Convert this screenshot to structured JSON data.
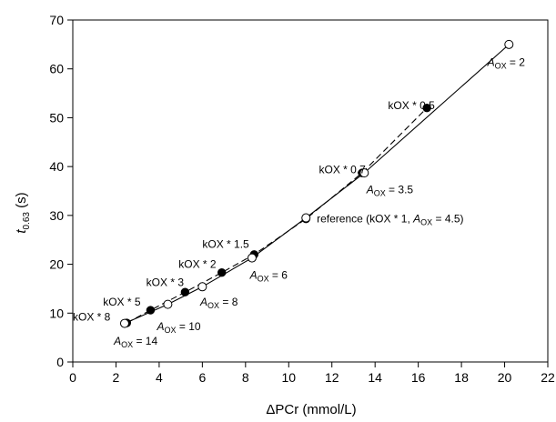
{
  "chart_data": {
    "type": "scatter",
    "xlabel": "ΔPCr (mmol/L)",
    "ylabel": {
      "main": "t",
      "sub": "0.63",
      "unit": " (s)"
    },
    "xlim": [
      0,
      22
    ],
    "ylim": [
      0,
      70
    ],
    "xticks": [
      0,
      2,
      4,
      6,
      8,
      10,
      12,
      14,
      16,
      18,
      20,
      22
    ],
    "yticks": [
      0,
      10,
      20,
      30,
      40,
      50,
      60,
      70
    ],
    "grid": false,
    "series": [
      {
        "marker": "filled-circle",
        "line": "dashed",
        "points": [
          {
            "x": 2.5,
            "y": 8.0,
            "label": "kOX * 8"
          },
          {
            "x": 3.6,
            "y": 10.6,
            "label": "kOX * 5"
          },
          {
            "x": 5.2,
            "y": 14.3,
            "label": "kOX * 3"
          },
          {
            "x": 6.9,
            "y": 18.3,
            "label": "kOX * 2"
          },
          {
            "x": 8.4,
            "y": 22.0,
            "label": "kOX * 1.5"
          },
          {
            "x": 10.8,
            "y": 29.3,
            "label": "reference (kOX * 1, A_OX = 4.5)"
          },
          {
            "x": 13.4,
            "y": 38.7,
            "label": "kOX * 0.7"
          },
          {
            "x": 16.4,
            "y": 52.0,
            "label": "kOX * 0.5"
          }
        ]
      },
      {
        "marker": "open-circle",
        "line": "solid",
        "points": [
          {
            "x": 2.4,
            "y": 7.9,
            "label": "A_OX = 14"
          },
          {
            "x": 4.4,
            "y": 11.8,
            "label": "A_OX = 10"
          },
          {
            "x": 6.0,
            "y": 15.4,
            "label": "A_OX = 8"
          },
          {
            "x": 8.3,
            "y": 21.3,
            "label": "A_OX = 6"
          },
          {
            "x": 10.8,
            "y": 29.5,
            "label": ""
          },
          {
            "x": 13.5,
            "y": 38.7,
            "label": "A_OX = 3.5"
          },
          {
            "x": 20.2,
            "y": 65.0,
            "label": "A_OX = 2"
          }
        ]
      }
    ],
    "annotations": [
      {
        "text": "kOX * 8",
        "x": 0.0,
        "y": 8.5
      },
      {
        "text": "kOX * 5",
        "x": 1.4,
        "y": 11.5
      },
      {
        "text": "kOX * 3",
        "x": 3.4,
        "y": 15.5
      },
      {
        "text": "kOX * 2",
        "x": 4.9,
        "y": 19.3
      },
      {
        "text": "kOX * 1.5",
        "x": 6.0,
        "y": 23.4
      },
      {
        "text": "kOX * 0.7",
        "x": 11.4,
        "y": 38.6
      },
      {
        "text": "kOX * 0.5",
        "x": 14.6,
        "y": 51.8
      },
      {
        "text": "reference (kOX * 1, ",
        "x": 11.3,
        "y": 28.6,
        "sub_italic": "A",
        "sub": "OX",
        "after": " = 4.5)"
      },
      {
        "text": "",
        "x": 1.9,
        "y": 3.5,
        "sub_italic": "A",
        "sub": "OX",
        "after": " = 14"
      },
      {
        "text": "",
        "x": 3.9,
        "y": 6.5,
        "sub_italic": "A",
        "sub": "OX",
        "after": " = 10"
      },
      {
        "text": "",
        "x": 5.9,
        "y": 11.5,
        "sub_italic": "A",
        "sub": "OX",
        "after": " = 8"
      },
      {
        "text": "",
        "x": 8.2,
        "y": 17.0,
        "sub_italic": "A",
        "sub": "OX",
        "after": " = 6"
      },
      {
        "text": "",
        "x": 13.6,
        "y": 34.5,
        "sub_italic": "A",
        "sub": "OX",
        "after": " = 3.5"
      },
      {
        "text": "",
        "x": 19.2,
        "y": 60.6,
        "sub_italic": "A",
        "sub": "OX",
        "after": " = 2"
      }
    ]
  }
}
